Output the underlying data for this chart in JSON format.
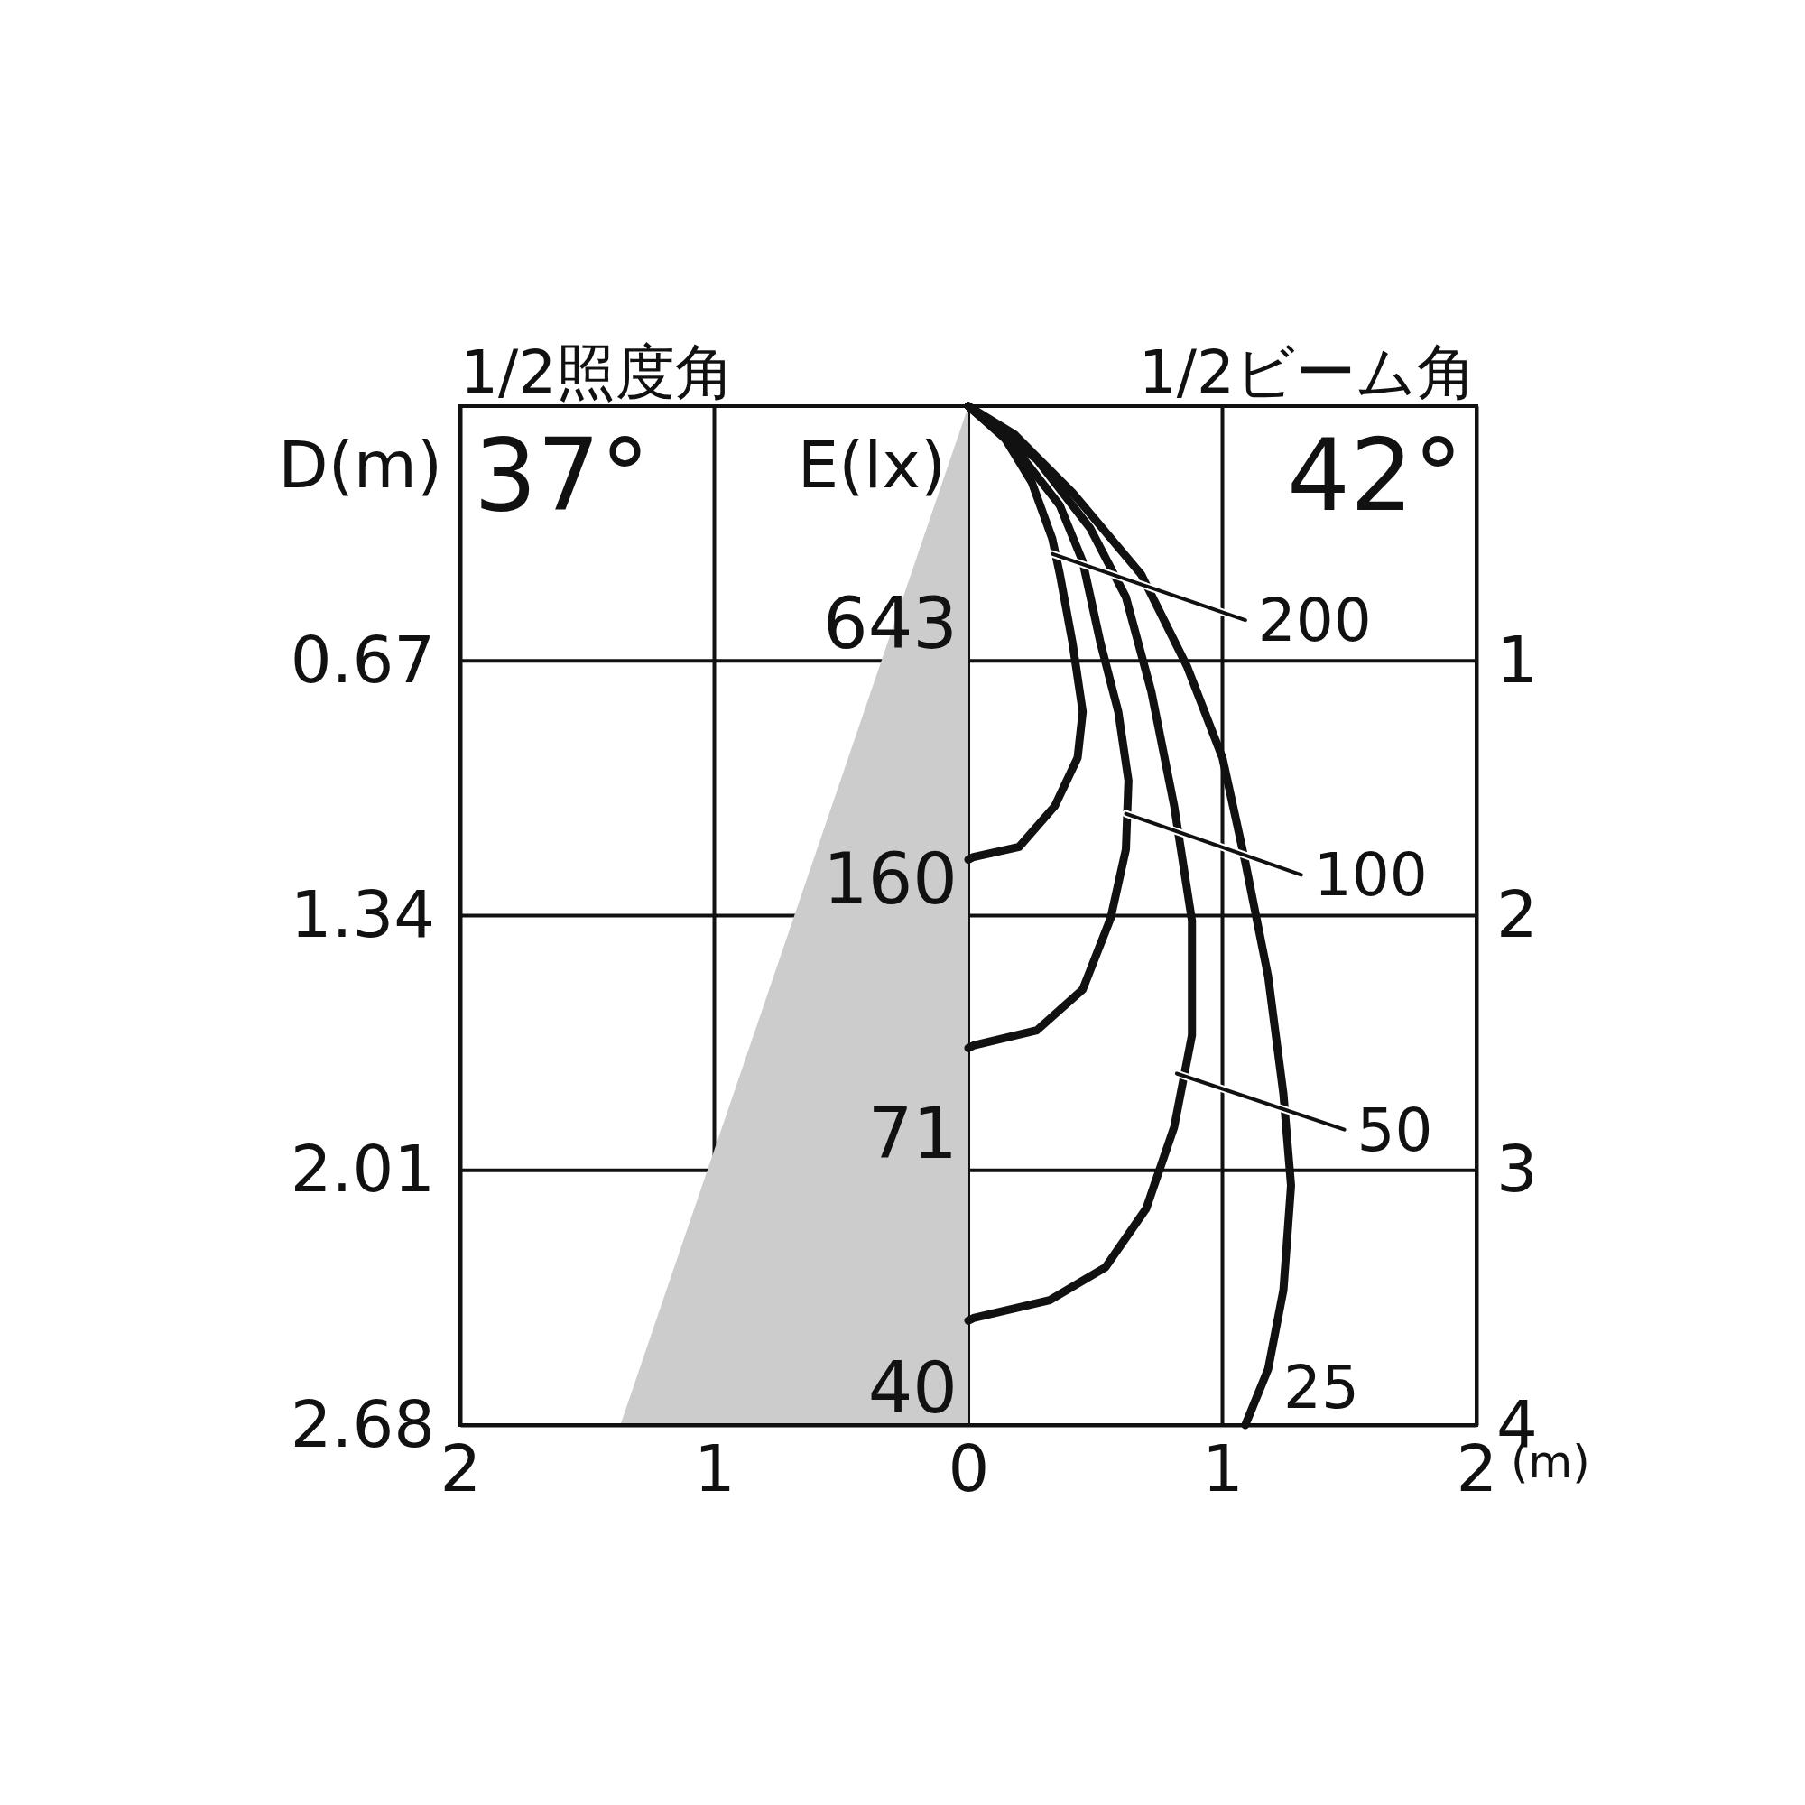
{
  "chart_data": {
    "type": "line",
    "y2label": "D(m)",
    "xlabel": "(m)",
    "annotations": [
      "1/2照度角",
      "37°",
      "1/2ビーム角",
      "42°",
      "E(lx)",
      "643",
      "160",
      "71",
      "40"
    ],
    "xlim": [
      -2,
      2
    ],
    "xticks": [
      {
        "value": -2,
        "label": "2"
      },
      {
        "value": -1,
        "label": "1"
      },
      0,
      1,
      2
    ],
    "ylim": [
      4,
      0
    ],
    "yticks": [
      1,
      2,
      3,
      4
    ],
    "y2lim": [
      2.68,
      0
    ],
    "y2ticks": [
      0.67,
      1.34,
      2.01,
      2.68
    ],
    "grid": true,
    "legend": "right",
    "series": [
      {
        "type": "area",
        "color": "#cccccc",
        "x": [
          -1.37,
          0
        ],
        "values": [
          4,
          0
        ]
      },
      {
        "name": "200",
        "color": "#111111",
        "x": [
          0,
          0.14,
          0.25,
          0.33,
          0.36,
          0.41,
          0.45,
          0.43,
          0.34,
          0.2,
          0.02,
          0
        ],
        "values": [
          0,
          0.12,
          0.3,
          0.52,
          0.66,
          0.93,
          1.2,
          1.38,
          1.57,
          1.73,
          1.77,
          1.78
        ]
      },
      {
        "name": "100",
        "color": "#111111",
        "x": [
          0,
          0.18,
          0.36,
          0.45,
          0.52,
          0.59,
          0.63,
          0.62,
          0.56,
          0.45,
          0.27,
          0.02,
          0
        ],
        "values": [
          0,
          0.16,
          0.39,
          0.61,
          0.93,
          1.2,
          1.47,
          1.74,
          2.01,
          2.29,
          2.45,
          2.51,
          2.52
        ]
      },
      {
        "name": "50",
        "color": "#111111",
        "x": [
          0,
          0.27,
          0.48,
          0.62,
          0.72,
          0.81,
          0.88,
          0.88,
          0.81,
          0.7,
          0.54,
          0.32,
          0.02,
          0
        ],
        "values": [
          0,
          0.21,
          0.48,
          0.75,
          1.12,
          1.57,
          2.02,
          2.47,
          2.83,
          3.15,
          3.38,
          3.51,
          3.58,
          3.59
        ]
      },
      {
        "name": "25",
        "color": "#111111",
        "x": [
          0,
          0.18,
          0.41,
          0.68,
          0.86,
          1,
          1.09,
          1.18,
          1.24,
          1.27,
          1.24,
          1.18,
          1.09
        ],
        "values": [
          0,
          0.11,
          0.34,
          0.66,
          1.02,
          1.38,
          1.79,
          2.24,
          2.7,
          3.06,
          3.47,
          3.78,
          4
        ]
      }
    ]
  }
}
